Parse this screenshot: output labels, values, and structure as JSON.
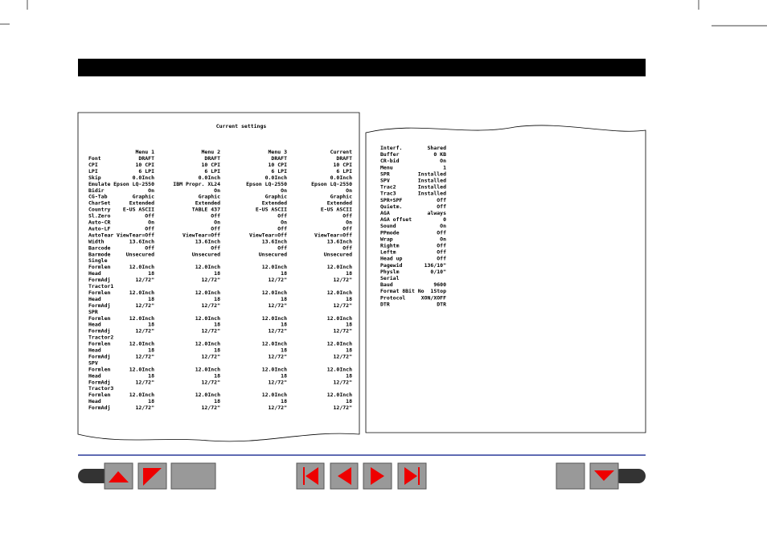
{
  "left_panel": {
    "title": "Current settings",
    "columns": [
      "Menu 1",
      "Menu 2",
      "Menu 3",
      "Current"
    ],
    "rows": [
      [
        "Font",
        "DRAFT",
        "DRAFT",
        "DRAFT",
        "DRAFT"
      ],
      [
        "CPI",
        "10 CPI",
        "10 CPI",
        "10 CPI",
        "10 CPI"
      ],
      [
        "LPI",
        "6 LPI",
        "6 LPI",
        "6 LPI",
        "6 LPI"
      ],
      [
        "Skip",
        "0.0Inch",
        "0.0Inch",
        "0.0Inch",
        "0.0Inch"
      ],
      [
        "Emulate",
        "Epson LQ-2550",
        "IBM Propr. XL24",
        "Epson LQ-2550",
        "Epson LQ-2550"
      ],
      [
        "Bidir",
        "On",
        "On",
        "On",
        "On"
      ],
      [
        "CG-Tab",
        "Graphic",
        "Graphic",
        "Graphic",
        "Graphic"
      ],
      [
        "CharSet",
        "Extended",
        "Extended",
        "Extended",
        "Extended"
      ],
      [
        "Country",
        "E-US ASCII",
        "TABLE 437",
        "E-US ASCII",
        "E-US ASCII"
      ],
      [
        "Sl.Zero",
        "Off",
        "Off",
        "Off",
        "Off"
      ],
      [
        "Auto-CR",
        "On",
        "On",
        "On",
        "On"
      ],
      [
        "Auto-LF",
        "Off",
        "Off",
        "Off",
        "Off"
      ],
      [
        "AutoTear",
        "ViewTear=Off",
        "ViewTear=Off",
        "ViewTear=Off",
        "ViewTear=Off"
      ],
      [
        "Width",
        "13.6Inch",
        "13.6Inch",
        "13.6Inch",
        "13.6Inch"
      ],
      [
        "Barcode",
        "Off",
        "Off",
        "Off",
        "Off"
      ],
      [
        "Barmode",
        "Unsecured",
        "Unsecured",
        "Unsecured",
        "Unsecured"
      ],
      [
        "Single"
      ],
      [
        "Formlen",
        "12.0Inch",
        "12.0Inch",
        "12.0Inch",
        "12.0Inch"
      ],
      [
        "Head",
        "18",
        "18",
        "18",
        "18"
      ],
      [
        "FormAdj",
        "12/72\"",
        "12/72\"",
        "12/72\"",
        "12/72\""
      ],
      [
        "Tractor1"
      ],
      [
        "Formlen",
        "12.0Inch",
        "12.0Inch",
        "12.0Inch",
        "12.0Inch"
      ],
      [
        "Head",
        "18",
        "18",
        "18",
        "18"
      ],
      [
        "FormAdj",
        "12/72\"",
        "12/72\"",
        "12/72\"",
        "12/72\""
      ],
      [
        "SPR"
      ],
      [
        "Formlen",
        "12.0Inch",
        "12.0Inch",
        "12.0Inch",
        "12.0Inch"
      ],
      [
        "Head",
        "18",
        "18",
        "18",
        "18"
      ],
      [
        "FormAdj",
        "12/72\"",
        "12/72\"",
        "12/72\"",
        "12/72\""
      ],
      [
        "Tractor2"
      ],
      [
        "Formlen",
        "12.0Inch",
        "12.0Inch",
        "12.0Inch",
        "12.0Inch"
      ],
      [
        "Head",
        "18",
        "18",
        "18",
        "18"
      ],
      [
        "FormAdj",
        "12/72\"",
        "12/72\"",
        "12/72\"",
        "12/72\""
      ],
      [
        "SPV"
      ],
      [
        "Formlen",
        "12.0Inch",
        "12.0Inch",
        "12.0Inch",
        "12.0Inch"
      ],
      [
        "Head",
        "18",
        "18",
        "18",
        "18"
      ],
      [
        "FormAdj",
        "12/72\"",
        "12/72\"",
        "12/72\"",
        "12/72\""
      ],
      [
        "Tractor3"
      ],
      [
        "Formlen",
        "12.0Inch",
        "12.0Inch",
        "12.0Inch",
        "12.0Inch"
      ],
      [
        "Head",
        "18",
        "18",
        "18",
        "18"
      ],
      [
        "FormAdj",
        "12/72\"",
        "12/72\"",
        "12/72\"",
        "12/72\""
      ]
    ]
  },
  "right_panel": {
    "rows": [
      [
        "Interf.",
        "Shared"
      ],
      [
        "Buffer",
        "0 KB"
      ],
      [
        "CR-bid",
        "On"
      ],
      [
        "Menu",
        "1"
      ],
      [
        "SPR",
        "Installed"
      ],
      [
        "SPV",
        "Installed"
      ],
      [
        "Trac2",
        "Installed"
      ],
      [
        "Trac3",
        "Installed"
      ],
      [
        "SPR+SPF",
        "Off"
      ],
      [
        "Quietm.",
        "Off"
      ],
      [
        "AGA",
        "always"
      ],
      [
        "AGA offset",
        "0"
      ],
      [
        "Sound",
        "On"
      ],
      [
        "PPmode",
        "Off"
      ],
      [
        "Wrap",
        "On"
      ],
      [
        "Rightm",
        "Off"
      ],
      [
        "Leftm",
        "Off"
      ],
      [
        "Head up",
        "Off"
      ],
      [
        "Pagewid",
        "136/10\""
      ],
      [
        "Physlm",
        "0/10\""
      ],
      [
        "Serial"
      ],
      [
        "Baud",
        "9600"
      ],
      [
        "Format",
        "8Bit No  1Stop"
      ],
      [
        "Protocol",
        "XON/XOFF"
      ],
      [
        "DTR",
        "DTR"
      ]
    ]
  }
}
